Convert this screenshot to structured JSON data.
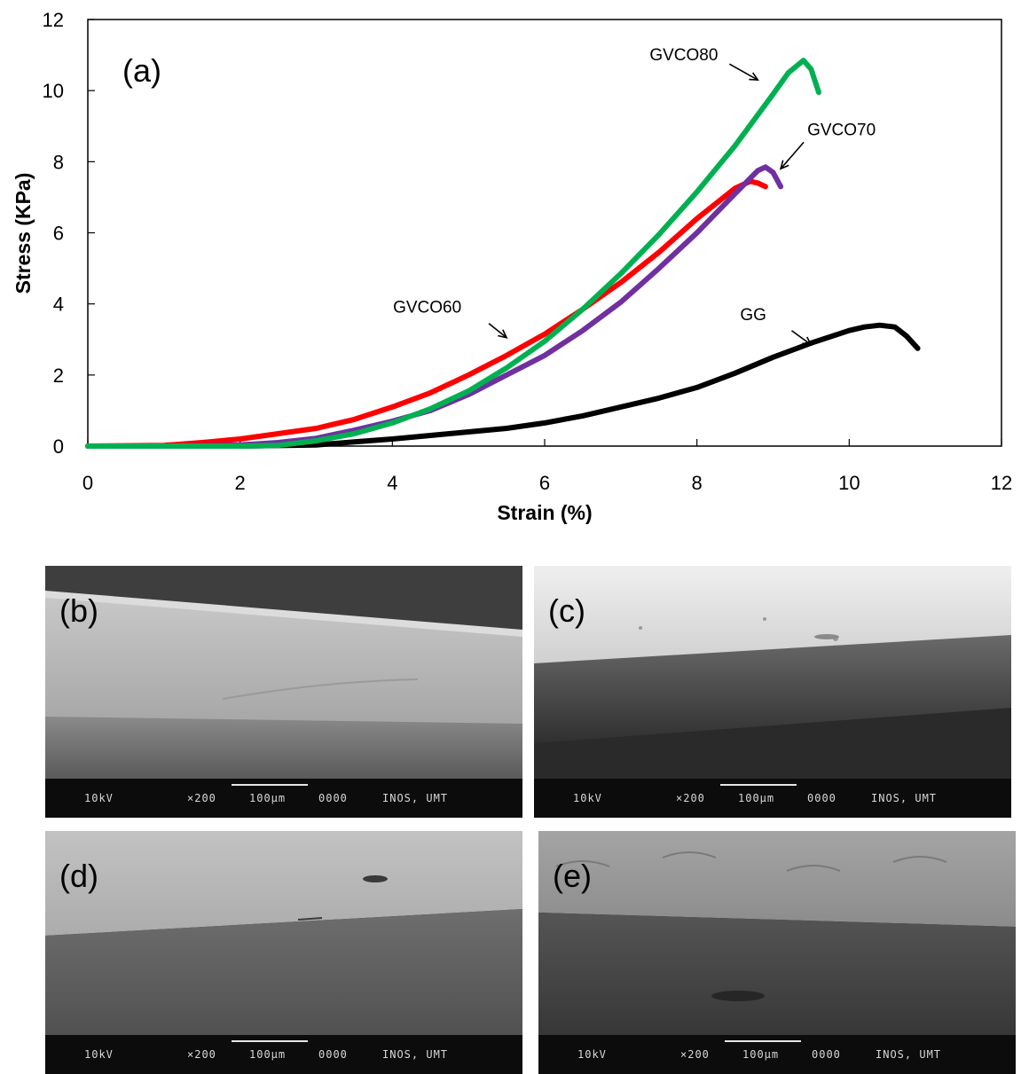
{
  "chart_data": {
    "type": "line",
    "panel_label": "(a)",
    "xlabel": "Strain (%)",
    "ylabel": "Stress (KPa)",
    "xlim": [
      0,
      12
    ],
    "ylim": [
      0,
      12
    ],
    "xticks": [
      0,
      2,
      4,
      6,
      8,
      10,
      12
    ],
    "yticks": [
      0,
      2,
      4,
      6,
      8,
      10,
      12
    ],
    "grid": false,
    "series": [
      {
        "name": "GG",
        "color": "#000000",
        "x": [
          0,
          1,
          2,
          3,
          3.5,
          4,
          4.5,
          5,
          5.5,
          6,
          6.5,
          7,
          7.5,
          8,
          8.5,
          9,
          9.5,
          10,
          10.2,
          10.4,
          10.6,
          10.75,
          10.9
        ],
        "y": [
          0,
          0,
          0,
          0.03,
          0.12,
          0.2,
          0.3,
          0.4,
          0.5,
          0.65,
          0.85,
          1.1,
          1.35,
          1.65,
          2.05,
          2.5,
          2.9,
          3.25,
          3.35,
          3.4,
          3.35,
          3.1,
          2.75
        ]
      },
      {
        "name": "GVCO60",
        "color": "#ff0000",
        "x": [
          0,
          1,
          1.5,
          2,
          2.5,
          3,
          3.5,
          4,
          4.5,
          5,
          5.5,
          6,
          6.5,
          7,
          7.5,
          8,
          8.5,
          8.7,
          8.8,
          8.9
        ],
        "y": [
          0,
          0.02,
          0.1,
          0.2,
          0.35,
          0.5,
          0.75,
          1.1,
          1.5,
          2.0,
          2.55,
          3.15,
          3.85,
          4.6,
          5.45,
          6.4,
          7.25,
          7.45,
          7.4,
          7.3
        ]
      },
      {
        "name": "GVCO70",
        "color": "#7030a0",
        "x": [
          0,
          1,
          2,
          2.5,
          3,
          3.5,
          4,
          4.5,
          5,
          5.5,
          6,
          6.5,
          7,
          7.5,
          8,
          8.5,
          8.8,
          8.9,
          9.0,
          9.1
        ],
        "y": [
          0,
          0,
          0.03,
          0.1,
          0.22,
          0.45,
          0.7,
          1.0,
          1.45,
          2.0,
          2.55,
          3.25,
          4.05,
          5.0,
          6.0,
          7.1,
          7.75,
          7.85,
          7.7,
          7.3
        ]
      },
      {
        "name": "GVCO80",
        "color": "#00b050",
        "x": [
          0,
          1,
          2,
          2.5,
          3,
          3.5,
          4,
          4.5,
          5,
          5.5,
          6,
          6.5,
          7,
          7.5,
          8,
          8.5,
          9,
          9.2,
          9.4,
          9.5,
          9.6
        ],
        "y": [
          0,
          0,
          0,
          0.02,
          0.15,
          0.35,
          0.65,
          1.05,
          1.55,
          2.2,
          2.95,
          3.85,
          4.85,
          5.95,
          7.15,
          8.45,
          9.9,
          10.5,
          10.85,
          10.6,
          9.95
        ]
      }
    ],
    "annotations": [
      {
        "text": "GVCO80",
        "target_x": 8.8,
        "target_y": 10.3
      },
      {
        "text": "GVCO70",
        "target_x": 9.1,
        "target_y": 7.8
      },
      {
        "text": "GVCO60",
        "target_x": 5.5,
        "target_y": 3.05
      },
      {
        "text": "GG",
        "target_x": 9.5,
        "target_y": 2.85
      }
    ]
  },
  "sem_panels": [
    {
      "label": "(b)",
      "kv": "10kV",
      "mag": "×200",
      "scale": "100μm",
      "id": "0000",
      "lab": "INOS, UMT"
    },
    {
      "label": "(c)",
      "kv": "10kV",
      "mag": "×200",
      "scale": "100μm",
      "id": "0000",
      "lab": "INOS, UMT"
    },
    {
      "label": "(d)",
      "kv": "10kV",
      "mag": "×200",
      "scale": "100μm",
      "id": "0000",
      "lab": "INOS, UMT"
    },
    {
      "label": "(e)",
      "kv": "10kV",
      "mag": "×200",
      "scale": "100μm",
      "id": "0000",
      "lab": "INOS, UMT"
    }
  ]
}
